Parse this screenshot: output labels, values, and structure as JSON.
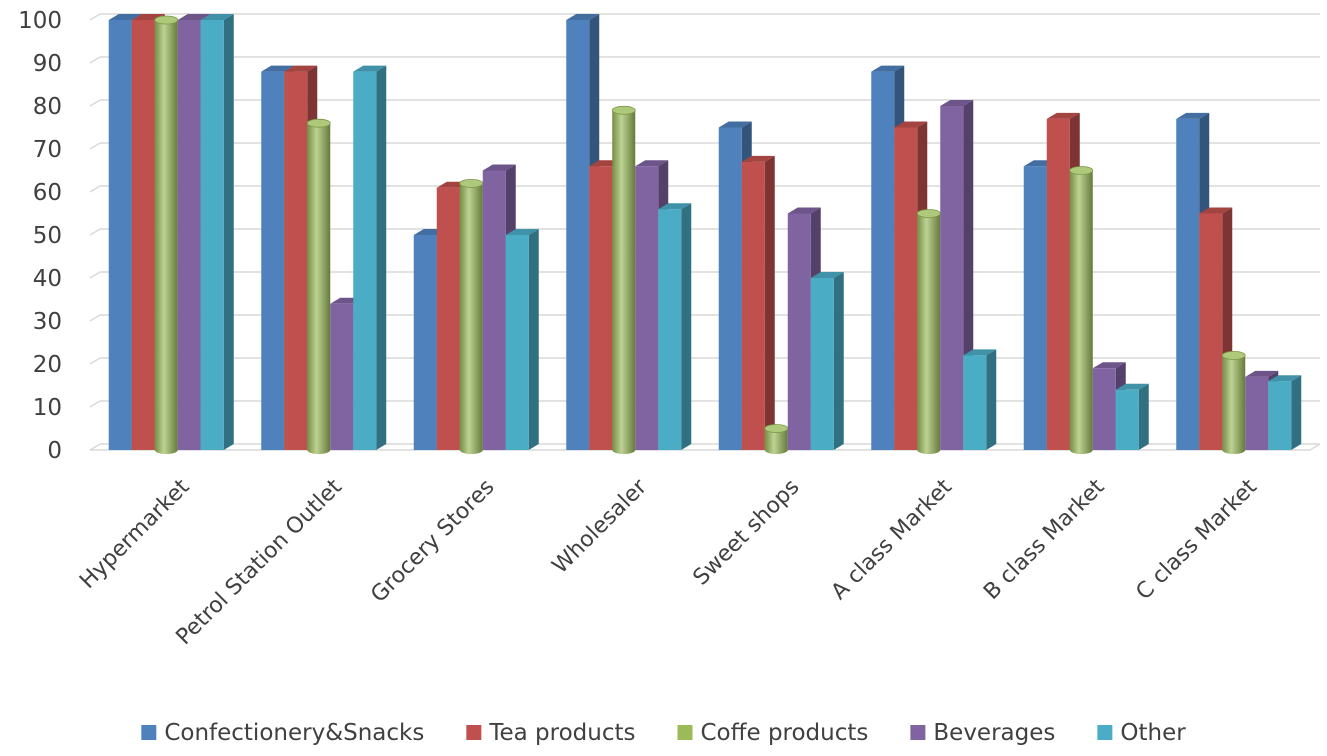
{
  "chart_data": {
    "type": "bar",
    "title": "",
    "xlabel": "",
    "ylabel": "",
    "ylim": [
      0,
      100
    ],
    "yticks": [
      0,
      10,
      20,
      30,
      40,
      50,
      60,
      70,
      80,
      90,
      100
    ],
    "grid": true,
    "legend_position": "bottom",
    "style": "3d-clustered-column",
    "categories": [
      "Hypermarket",
      "Petrol Station Outlet",
      "Grocery Stores",
      "Wholesaler",
      "Sweet shops",
      "A class Market",
      "B class Market",
      "C class Market"
    ],
    "series": [
      {
        "name": "Confectionery&Snacks",
        "color": "#4F81BD",
        "shape": "box",
        "values": [
          100,
          88,
          50,
          100,
          75,
          88,
          66,
          77
        ]
      },
      {
        "name": "Tea products",
        "color": "#C0504D",
        "shape": "box",
        "values": [
          100,
          88,
          61,
          66,
          67,
          75,
          77,
          55
        ]
      },
      {
        "name": "Coffe products",
        "color": "#9BBB59",
        "shape": "cylinder",
        "values": [
          100,
          76,
          62,
          79,
          5,
          55,
          65,
          22
        ]
      },
      {
        "name": "Beverages",
        "color": "#8064A2",
        "shape": "box",
        "values": [
          100,
          34,
          65,
          66,
          55,
          80,
          19,
          17
        ]
      },
      {
        "name": "Other",
        "color": "#4BACC6",
        "shape": "box",
        "values": [
          100,
          88,
          50,
          56,
          40,
          22,
          14,
          16
        ]
      }
    ]
  }
}
